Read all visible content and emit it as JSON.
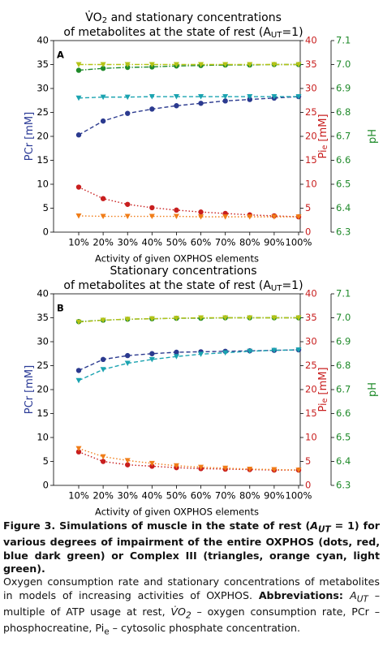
{
  "chart_data": [
    {
      "type": "line",
      "panel": "A",
      "title": [
        [
          "V̇O",
          "2",
          " and stationary concentrations"
        ],
        [
          "of metabolites at the state of rest (A",
          "UT",
          "=1)"
        ]
      ],
      "xlabel": "Activity of given OXPHOS elements",
      "ylabel": [
        [
          "PCr [mM]"
        ]
      ],
      "y2label": [
        [
          "Pi",
          "e",
          " [mM]"
        ]
      ],
      "y3label": [
        [
          "pH"
        ]
      ],
      "categories": [
        "10%",
        "20%",
        "30%",
        "40%",
        "50%",
        "60%",
        "70%",
        "80%",
        "90%",
        "100%"
      ],
      "ylim": [
        0,
        40
      ],
      "yticks": [
        0,
        5,
        10,
        15,
        20,
        25,
        30,
        35,
        40
      ],
      "y2lim": [
        0,
        40
      ],
      "y2ticks": [
        0,
        5,
        10,
        15,
        20,
        25,
        30,
        35,
        40
      ],
      "y3lim": [
        6.3,
        7.1
      ],
      "y3ticks": [
        6.3,
        6.4,
        6.5,
        6.6,
        6.7,
        6.8,
        6.9,
        {
          "value": 7,
          "label": "7.0"
        },
        7.1
      ],
      "axis_colors": {
        "y": "#2a3a96",
        "y2": "#c81e1e",
        "y3": "#1f8a2a"
      },
      "series": [
        {
          "color": "#2b3a8f",
          "marker": "o",
          "linestyle": "--",
          "axis": "y",
          "values": [
            20.3,
            23.2,
            24.8,
            25.7,
            26.4,
            26.9,
            27.4,
            27.7,
            28.0,
            28.3
          ]
        },
        {
          "color": "#1aa3b0",
          "marker": "v",
          "linestyle": "--",
          "axis": "y",
          "values": [
            28.0,
            28.2,
            28.2,
            28.3,
            28.3,
            28.3,
            28.3,
            28.3,
            28.3,
            28.3
          ]
        },
        {
          "color": "#c81e1e",
          "marker": "o",
          "linestyle": ":",
          "axis": "y2",
          "values": [
            9.4,
            7.0,
            5.8,
            5.1,
            4.6,
            4.2,
            3.9,
            3.6,
            3.4,
            3.2
          ]
        },
        {
          "color": "#f07d18",
          "marker": "v",
          "linestyle": ":",
          "axis": "y2",
          "values": [
            3.4,
            3.3,
            3.3,
            3.3,
            3.3,
            3.2,
            3.2,
            3.2,
            3.2,
            3.2
          ]
        },
        {
          "color": "#1f8a2a",
          "marker": "o",
          "linestyle": "-.",
          "axis": "y3",
          "values": [
            6.976,
            6.984,
            6.988,
            6.99,
            6.994,
            6.996,
            6.998,
            6.998,
            7.0,
            7.0
          ]
        },
        {
          "color": "#b5c417",
          "marker": "v",
          "linestyle": "-.",
          "axis": "y3",
          "values": [
            7.0,
            7.0,
            7.0,
            7.0,
            7.0,
            7.0,
            7.0,
            7.0,
            7.0,
            7.0
          ]
        }
      ]
    },
    {
      "type": "line",
      "panel": "B",
      "title": [
        [
          "Stationary concentrations"
        ],
        [
          "of metabolites at the state of rest (A",
          "UT",
          "=1)"
        ]
      ],
      "xlabel": "Activity of given OXPHOS elements",
      "ylabel": [
        [
          "PCr [mM]"
        ]
      ],
      "y2label": [
        [
          "Pi",
          "e",
          " [mM]"
        ]
      ],
      "y3label": [
        [
          "pH"
        ]
      ],
      "categories": [
        "10%",
        "20%",
        "30%",
        "40%",
        "50%",
        "60%",
        "70%",
        "80%",
        "90%",
        "100%"
      ],
      "ylim": [
        0,
        40
      ],
      "yticks": [
        0,
        5,
        10,
        15,
        20,
        25,
        30,
        35,
        40
      ],
      "y2lim": [
        0,
        40
      ],
      "y2ticks": [
        0,
        5,
        10,
        15,
        20,
        25,
        30,
        35,
        40
      ],
      "y3lim": [
        6.3,
        7.1
      ],
      "y3ticks": [
        6.3,
        6.4,
        6.5,
        6.6,
        6.7,
        6.8,
        6.9,
        {
          "value": 7,
          "label": "7.0"
        },
        7.1
      ],
      "axis_colors": {
        "y": "#2a3a96",
        "y2": "#c81e1e",
        "y3": "#1f8a2a"
      },
      "series": [
        {
          "color": "#2b3a8f",
          "marker": "o",
          "linestyle": "--",
          "axis": "y",
          "values": [
            24.0,
            26.3,
            27.1,
            27.5,
            27.8,
            27.9,
            28.0,
            28.1,
            28.2,
            28.3
          ]
        },
        {
          "color": "#1aa3b0",
          "marker": "v",
          "linestyle": "--",
          "axis": "y",
          "values": [
            21.9,
            24.2,
            25.5,
            26.3,
            26.9,
            27.4,
            27.7,
            28.0,
            28.2,
            28.3
          ]
        },
        {
          "color": "#c81e1e",
          "marker": "o",
          "linestyle": ":",
          "axis": "y2",
          "values": [
            7.0,
            5.0,
            4.3,
            4.0,
            3.7,
            3.5,
            3.4,
            3.3,
            3.2,
            3.2
          ]
        },
        {
          "color": "#f07d18",
          "marker": "v",
          "linestyle": ":",
          "axis": "y2",
          "values": [
            7.7,
            6.0,
            5.2,
            4.6,
            4.1,
            3.8,
            3.6,
            3.4,
            3.3,
            3.2
          ]
        },
        {
          "color": "#1f8a2a",
          "marker": "o",
          "linestyle": "-.",
          "axis": "y3",
          "values": [
            6.984,
            6.99,
            6.994,
            6.996,
            6.998,
            6.998,
            7.0,
            7.0,
            7.0,
            7.0
          ]
        },
        {
          "color": "#b5c417",
          "marker": "v",
          "linestyle": "-.",
          "axis": "y3",
          "values": [
            6.982,
            6.99,
            6.994,
            6.996,
            6.998,
            7.0,
            7.0,
            7.0,
            7.0,
            7.0
          ]
        }
      ]
    }
  ],
  "caption": {
    "p1": [
      "Figure 3. Simulations of muscle in the state of rest (",
      "A",
      "UT",
      " = 1) for various degrees of impairment of the entire OXPHOS (dots, red, blue dark green) or Complex III (triangles, orange cyan, light green)."
    ],
    "p2": [
      "Oxygen consumption rate and stationary concentrations of metabolites in models of increasing activities of OXPHOS. ",
      "Abbreviations",
      ": ",
      "A",
      "UT",
      " – multiple of ATP usage at rest, ",
      "V̇O",
      "2",
      " – oxygen consumption rate, PCr – phosphocreatine, Pi",
      "e",
      " – cytosolic phosphate concentration."
    ]
  }
}
